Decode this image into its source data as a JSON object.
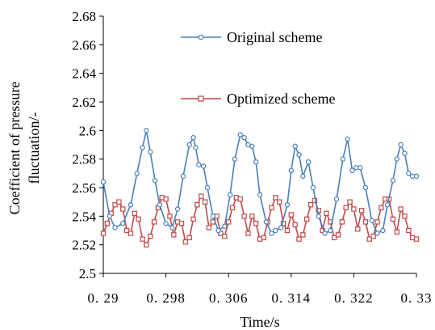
{
  "chart_data": {
    "type": "line",
    "title": "",
    "xlabel": "Time/s",
    "ylabel_lines": [
      "Coefficient of pressure",
      "fluctuation/-"
    ],
    "xlim": [
      0.29,
      0.33
    ],
    "ylim": [
      2.5,
      2.68
    ],
    "xticks": [
      0.29,
      0.298,
      0.306,
      0.314,
      0.322,
      0.33
    ],
    "xtick_labels": [
      "0. 29",
      "0. 298",
      "0. 306",
      "0. 314",
      "0. 322",
      "0. 33"
    ],
    "yticks": [
      2.5,
      2.52,
      2.54,
      2.56,
      2.58,
      2.6,
      2.62,
      2.64,
      2.66,
      2.68
    ],
    "ytick_labels": [
      "2.5",
      "2.52",
      "2.54",
      "2.56",
      "2.58",
      "2.6",
      "2.62",
      "2.64",
      "2.66",
      "2.68"
    ],
    "grid": false,
    "legend_position": "top-right",
    "series": [
      {
        "name": "Original scheme",
        "color": "#4a7ebb",
        "marker": "circle",
        "x": [
          0.29,
          0.2908,
          0.2915,
          0.2925,
          0.2935,
          0.2943,
          0.295,
          0.2955,
          0.296,
          0.2966,
          0.2972,
          0.298,
          0.2988,
          0.2995,
          0.3002,
          0.301,
          0.3015,
          0.3018,
          0.3022,
          0.3028,
          0.3033,
          0.304,
          0.3047,
          0.3055,
          0.3062,
          0.3068,
          0.3075,
          0.308,
          0.3085,
          0.309,
          0.3095,
          0.31,
          0.3108,
          0.3115,
          0.312,
          0.3127,
          0.3135,
          0.314,
          0.3145,
          0.315,
          0.3155,
          0.3162,
          0.3168,
          0.3175,
          0.3183,
          0.319,
          0.3198,
          0.3206,
          0.3212,
          0.3218,
          0.3223,
          0.3228,
          0.3235,
          0.3243,
          0.325,
          0.3257,
          0.3263,
          0.327,
          0.3275,
          0.328,
          0.3285,
          0.329,
          0.3295,
          0.33
        ],
        "y": [
          2.564,
          2.54,
          2.532,
          2.535,
          2.548,
          2.57,
          2.588,
          2.6,
          2.585,
          2.565,
          2.548,
          2.535,
          2.532,
          2.545,
          2.568,
          2.59,
          2.595,
          2.588,
          2.576,
          2.575,
          2.56,
          2.54,
          2.53,
          2.533,
          2.555,
          2.58,
          2.597,
          2.595,
          2.59,
          2.589,
          2.578,
          2.555,
          2.536,
          2.528,
          2.53,
          2.532,
          2.548,
          2.572,
          2.589,
          2.583,
          2.568,
          2.578,
          2.56,
          2.54,
          2.528,
          2.53,
          2.552,
          2.58,
          2.594,
          2.572,
          2.574,
          2.574,
          2.56,
          2.537,
          2.528,
          2.53,
          2.548,
          2.565,
          2.58,
          2.59,
          2.584,
          2.57,
          2.568,
          2.568
        ]
      },
      {
        "name": "Optimized scheme",
        "color": "#be4b48",
        "marker": "square",
        "x": [
          0.29,
          0.2905,
          0.291,
          0.2915,
          0.292,
          0.2925,
          0.293,
          0.2935,
          0.294,
          0.2945,
          0.295,
          0.2955,
          0.296,
          0.2965,
          0.297,
          0.2975,
          0.298,
          0.2985,
          0.299,
          0.2995,
          0.3,
          0.3005,
          0.301,
          0.3015,
          0.302,
          0.3025,
          0.303,
          0.3035,
          0.304,
          0.3045,
          0.305,
          0.3055,
          0.306,
          0.3065,
          0.307,
          0.3075,
          0.308,
          0.3085,
          0.309,
          0.3095,
          0.31,
          0.3105,
          0.311,
          0.3115,
          0.312,
          0.3125,
          0.313,
          0.3135,
          0.314,
          0.3145,
          0.315,
          0.3155,
          0.316,
          0.3165,
          0.317,
          0.3175,
          0.318,
          0.3185,
          0.319,
          0.3195,
          0.32,
          0.3205,
          0.321,
          0.3215,
          0.322,
          0.3225,
          0.323,
          0.3235,
          0.324,
          0.3245,
          0.325,
          0.3255,
          0.326,
          0.3265,
          0.327,
          0.3275,
          0.328,
          0.3285,
          0.329,
          0.3295,
          0.33
        ],
        "y": [
          2.528,
          2.535,
          2.542,
          2.548,
          2.55,
          2.545,
          2.53,
          2.528,
          2.542,
          2.538,
          2.524,
          2.52,
          2.526,
          2.536,
          2.546,
          2.553,
          2.552,
          2.54,
          2.527,
          2.536,
          2.535,
          2.522,
          2.525,
          2.538,
          2.548,
          2.554,
          2.55,
          2.532,
          2.536,
          2.54,
          2.528,
          2.526,
          2.536,
          2.546,
          2.553,
          2.552,
          2.54,
          2.528,
          2.54,
          2.535,
          2.524,
          2.525,
          2.536,
          2.546,
          2.553,
          2.55,
          2.535,
          2.53,
          2.541,
          2.534,
          2.524,
          2.527,
          2.538,
          2.548,
          2.551,
          2.544,
          2.53,
          2.542,
          2.536,
          2.525,
          2.527,
          2.536,
          2.546,
          2.55,
          2.545,
          2.531,
          2.544,
          2.536,
          2.524,
          2.526,
          2.536,
          2.546,
          2.552,
          2.552,
          2.538,
          2.529,
          2.545,
          2.54,
          2.53,
          2.525,
          2.524
        ]
      }
    ]
  }
}
